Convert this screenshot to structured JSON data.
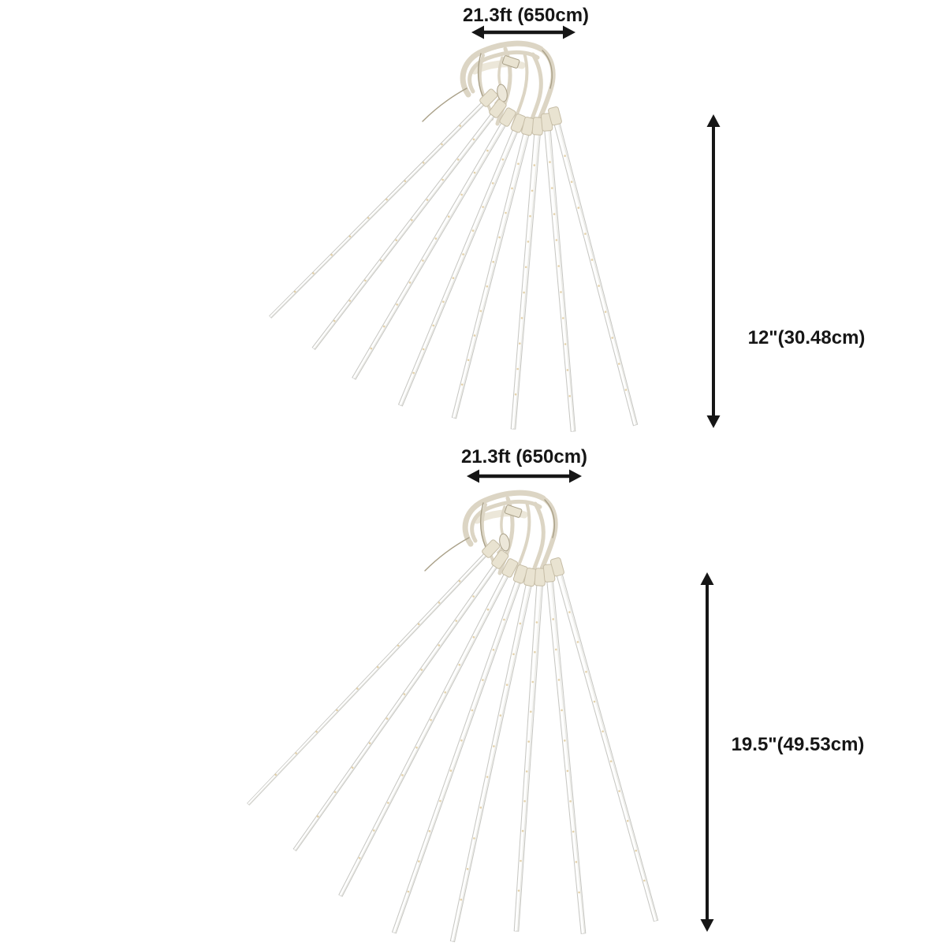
{
  "page": {
    "background": "#ffffff"
  },
  "figure": {
    "kind": "product-dimension-diagram",
    "panels": [
      {
        "id": "top",
        "tube_count": 8,
        "width": {
          "label": "21.3ft (650cm)"
        },
        "height": {
          "label": "12\"(30.48cm)"
        }
      },
      {
        "id": "bottom",
        "tube_count": 8,
        "width": {
          "label": "21.3ft (650cm)"
        },
        "height": {
          "label": "19.5\"(49.53cm)"
        }
      }
    ]
  },
  "colors": {
    "background": "#ffffff",
    "annotation": "#161616",
    "wire": "#dcd5c4",
    "wire_light": "#ece7d9",
    "wire_shadow": "#aaa189",
    "connector": "#e9e3d1",
    "tube_fill": "#fbfbfa",
    "tube_edge": "#c6c6c2",
    "led_dot": "#dcc38e"
  }
}
